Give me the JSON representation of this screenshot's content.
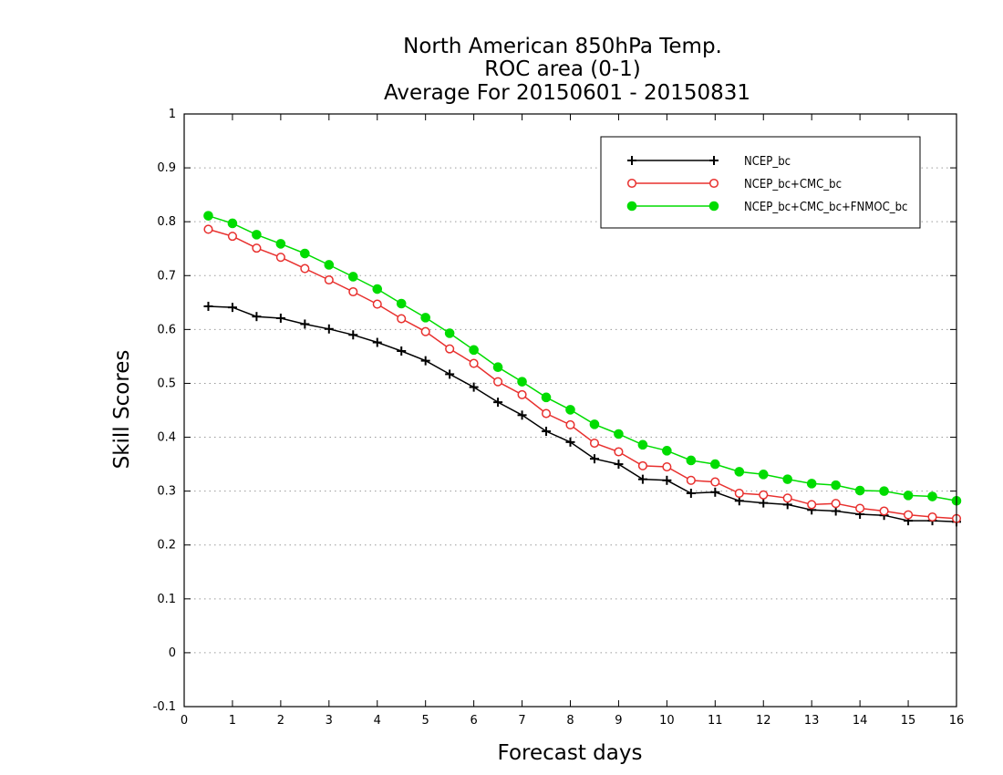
{
  "chart_data": {
    "type": "line",
    "title_lines": [
      "North American 850hPa Temp.",
      "ROC area (0-1)",
      "Average For 20150601 - 20150831"
    ],
    "xlabel": "Forecast days",
    "ylabel": "Skill Scores",
    "xlim": [
      0,
      16
    ],
    "ylim": [
      -0.1,
      1
    ],
    "xticks": [
      "0",
      "1",
      "2",
      "3",
      "4",
      "5",
      "6",
      "7",
      "8",
      "9",
      "10",
      "11",
      "12",
      "13",
      "14",
      "15",
      "16"
    ],
    "yticks": [
      "-0.1",
      "0",
      "0.1",
      "0.2",
      "0.3",
      "0.4",
      "0.5",
      "0.6",
      "0.7",
      "0.8",
      "0.9",
      "1"
    ],
    "grid": "horizontal-dotted",
    "legend_position": "top-right",
    "x": [
      0.5,
      1,
      1.5,
      2,
      2.5,
      3,
      3.5,
      4,
      4.5,
      5,
      5.5,
      6,
      6.5,
      7,
      7.5,
      8,
      8.5,
      9,
      9.5,
      10,
      10.5,
      11,
      11.5,
      12,
      12.5,
      13,
      13.5,
      14,
      14.5,
      15,
      15.5,
      16
    ],
    "series": [
      {
        "name": "NCEP_bc",
        "color": "#000000",
        "marker": "plus",
        "values": [
          0.643,
          0.641,
          0.624,
          0.621,
          0.61,
          0.601,
          0.59,
          0.576,
          0.56,
          0.542,
          0.517,
          0.493,
          0.465,
          0.441,
          0.411,
          0.391,
          0.36,
          0.35,
          0.322,
          0.32,
          0.296,
          0.298,
          0.282,
          0.278,
          0.275,
          0.265,
          0.263,
          0.257,
          0.255,
          0.245,
          0.245,
          0.243
        ]
      },
      {
        "name": "NCEP_bc+CMC_bc",
        "color": "#e8302e",
        "marker": "open-circle",
        "values": [
          0.786,
          0.773,
          0.751,
          0.734,
          0.713,
          0.692,
          0.67,
          0.647,
          0.62,
          0.596,
          0.564,
          0.537,
          0.503,
          0.479,
          0.444,
          0.423,
          0.389,
          0.373,
          0.347,
          0.345,
          0.32,
          0.317,
          0.296,
          0.293,
          0.287,
          0.275,
          0.277,
          0.268,
          0.263,
          0.256,
          0.252,
          0.249
        ]
      },
      {
        "name": "NCEP_bc+CMC_bc+FNMOC_bc",
        "color": "#00dc00",
        "marker": "filled-circle",
        "values": [
          0.811,
          0.797,
          0.776,
          0.759,
          0.741,
          0.72,
          0.698,
          0.675,
          0.648,
          0.622,
          0.593,
          0.562,
          0.53,
          0.503,
          0.474,
          0.451,
          0.424,
          0.406,
          0.386,
          0.375,
          0.357,
          0.35,
          0.336,
          0.331,
          0.322,
          0.314,
          0.311,
          0.301,
          0.3,
          0.292,
          0.29,
          0.282
        ]
      }
    ]
  }
}
